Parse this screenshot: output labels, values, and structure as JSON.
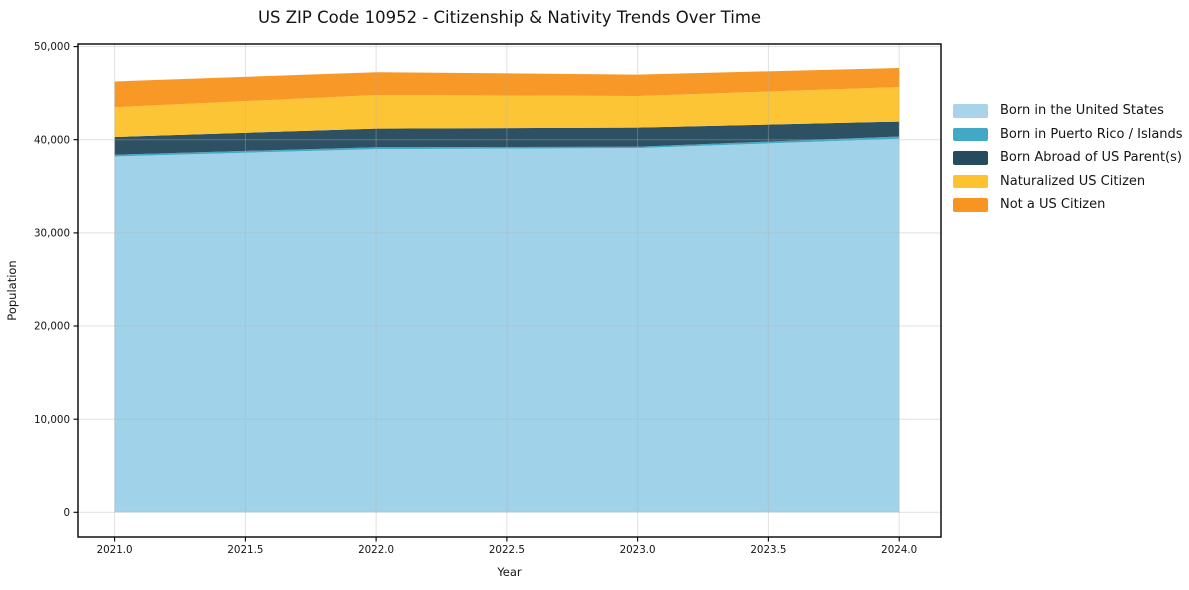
{
  "chart_data": {
    "type": "area",
    "stacked": true,
    "title": "US ZIP Code 10952 - Citizenship & Nativity Trends Over Time",
    "xlabel": "Year",
    "ylabel": "Population",
    "x": [
      2021,
      2022,
      2023,
      2024
    ],
    "series": [
      {
        "name": "Born in the United States",
        "color": "#9dd1e9",
        "legend_color": "#a8d3e8",
        "values": [
          38200,
          39000,
          39100,
          40100
        ]
      },
      {
        "name": "Born in Puerto Rico / Islands",
        "color": "#3fa7c4",
        "legend_color": "#41a9c5",
        "values": [
          200,
          200,
          150,
          250
        ]
      },
      {
        "name": "Born Abroad of US Parent(s)",
        "color": "#264a5e",
        "legend_color": "#264a5e",
        "values": [
          1900,
          2000,
          2050,
          1600
        ]
      },
      {
        "name": "Naturalized US Citizen",
        "color": "#fcc32e",
        "legend_color": "#fcc32e",
        "values": [
          3200,
          3600,
          3400,
          3700
        ]
      },
      {
        "name": "Not a US Citizen",
        "color": "#f79520",
        "legend_color": "#f79520",
        "values": [
          2750,
          2450,
          2300,
          2050
        ]
      }
    ],
    "x_ticks": [
      2021.0,
      2021.5,
      2022.0,
      2022.5,
      2023.0,
      2023.5,
      2024.0
    ],
    "x_tick_labels": [
      "2021.0",
      "2021.5",
      "2022.0",
      "2022.5",
      "2023.0",
      "2023.5",
      "2024.0"
    ],
    "y_ticks": [
      0,
      10000,
      20000,
      30000,
      40000,
      50000
    ],
    "y_tick_labels": [
      "0",
      "10,000",
      "20,000",
      "30,000",
      "40,000",
      "50,000"
    ],
    "xlim": [
      2020.86,
      2024.16
    ],
    "ylim": [
      -2650,
      50280
    ],
    "grid": true,
    "legend_position": "right"
  }
}
